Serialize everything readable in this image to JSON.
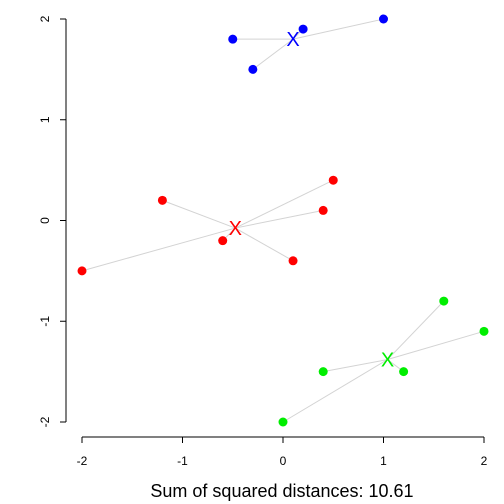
{
  "chart_data": {
    "type": "scatter",
    "xlim": [
      -2.0,
      2.0
    ],
    "ylim": [
      -2.0,
      2.0
    ],
    "x_ticks": [
      "-2",
      "-1",
      "0",
      "1",
      "2"
    ],
    "y_ticks": [
      "-2",
      "-1",
      "0",
      "1",
      "2"
    ],
    "grid": false,
    "summary_text": "Sum of squared distances: 10.61",
    "clusters": [
      {
        "color": "#0000ff",
        "centroid": {
          "x": 0.1,
          "y": 1.8,
          "label": "X"
        },
        "points": [
          {
            "x": -0.5,
            "y": 1.8
          },
          {
            "x": -0.3,
            "y": 1.5
          },
          {
            "x": 0.2,
            "y": 1.9
          },
          {
            "x": 1.0,
            "y": 2.0
          }
        ]
      },
      {
        "color": "#ff0000",
        "centroid": {
          "x": -0.475,
          "y": -0.075,
          "label": "X"
        },
        "points": [
          {
            "x": -2.0,
            "y": -0.5
          },
          {
            "x": -1.2,
            "y": 0.2
          },
          {
            "x": -0.6,
            "y": -0.2
          },
          {
            "x": 0.1,
            "y": -0.4
          },
          {
            "x": 0.4,
            "y": 0.1
          },
          {
            "x": 0.5,
            "y": 0.4
          }
        ]
      },
      {
        "color": "#00ee00",
        "centroid": {
          "x": 1.04,
          "y": -1.38,
          "label": "X"
        },
        "points": [
          {
            "x": 0.0,
            "y": -2.0
          },
          {
            "x": 0.4,
            "y": -1.5
          },
          {
            "x": 1.2,
            "y": -1.5
          },
          {
            "x": 1.6,
            "y": -0.8
          },
          {
            "x": 2.0,
            "y": -1.1
          }
        ]
      }
    ]
  }
}
